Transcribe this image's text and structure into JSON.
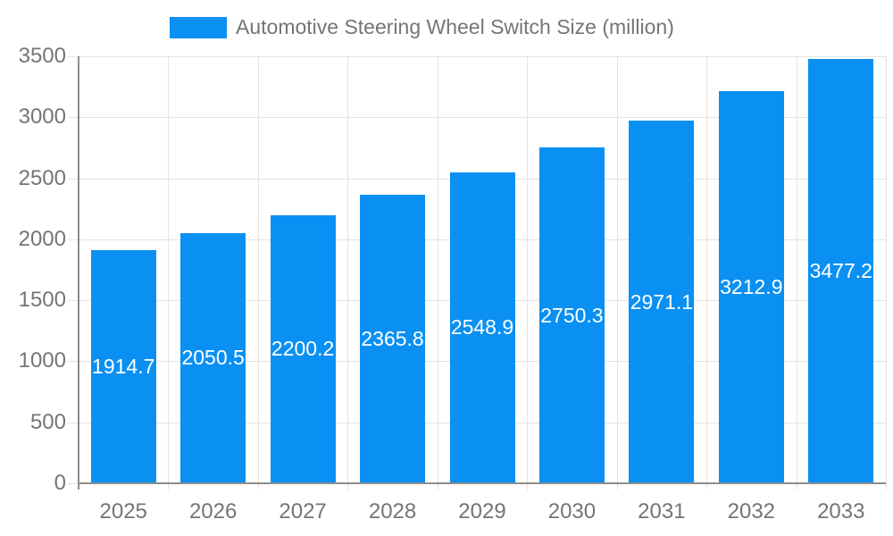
{
  "legend": {
    "label": "Automotive Steering Wheel Switch Size (million)",
    "swatch_color": "#0a90f2"
  },
  "chart_data": {
    "type": "bar",
    "title": "Automotive Steering Wheel Switch Size (million)",
    "series": [
      {
        "name": "Automotive Steering Wheel Switch Size (million)",
        "values": [
          1914.7,
          2050.5,
          2200.2,
          2365.8,
          2548.9,
          2750.3,
          2971.1,
          3212.9,
          3477.2
        ]
      }
    ],
    "categories": [
      "2025",
      "2026",
      "2027",
      "2028",
      "2029",
      "2030",
      "2031",
      "2032",
      "2033"
    ],
    "value_labels": [
      "1914.7",
      "2050.5",
      "2200.2",
      "2365.8",
      "2548.9",
      "2750.3",
      "2971.1",
      "3212.9",
      "3477.2"
    ],
    "yticks": [
      0,
      500,
      1000,
      1500,
      2000,
      2500,
      3000,
      3500
    ],
    "ylim": [
      0,
      3500
    ],
    "xlabel": "",
    "ylabel": "",
    "grid": true,
    "legend_position": "top"
  },
  "colors": {
    "bar": "#0a90f2",
    "grid": "#e3e3e3",
    "axis": "#8d8d8d",
    "tick_label": "#757575",
    "value_label": "#ffffff",
    "background": "#ffffff"
  }
}
